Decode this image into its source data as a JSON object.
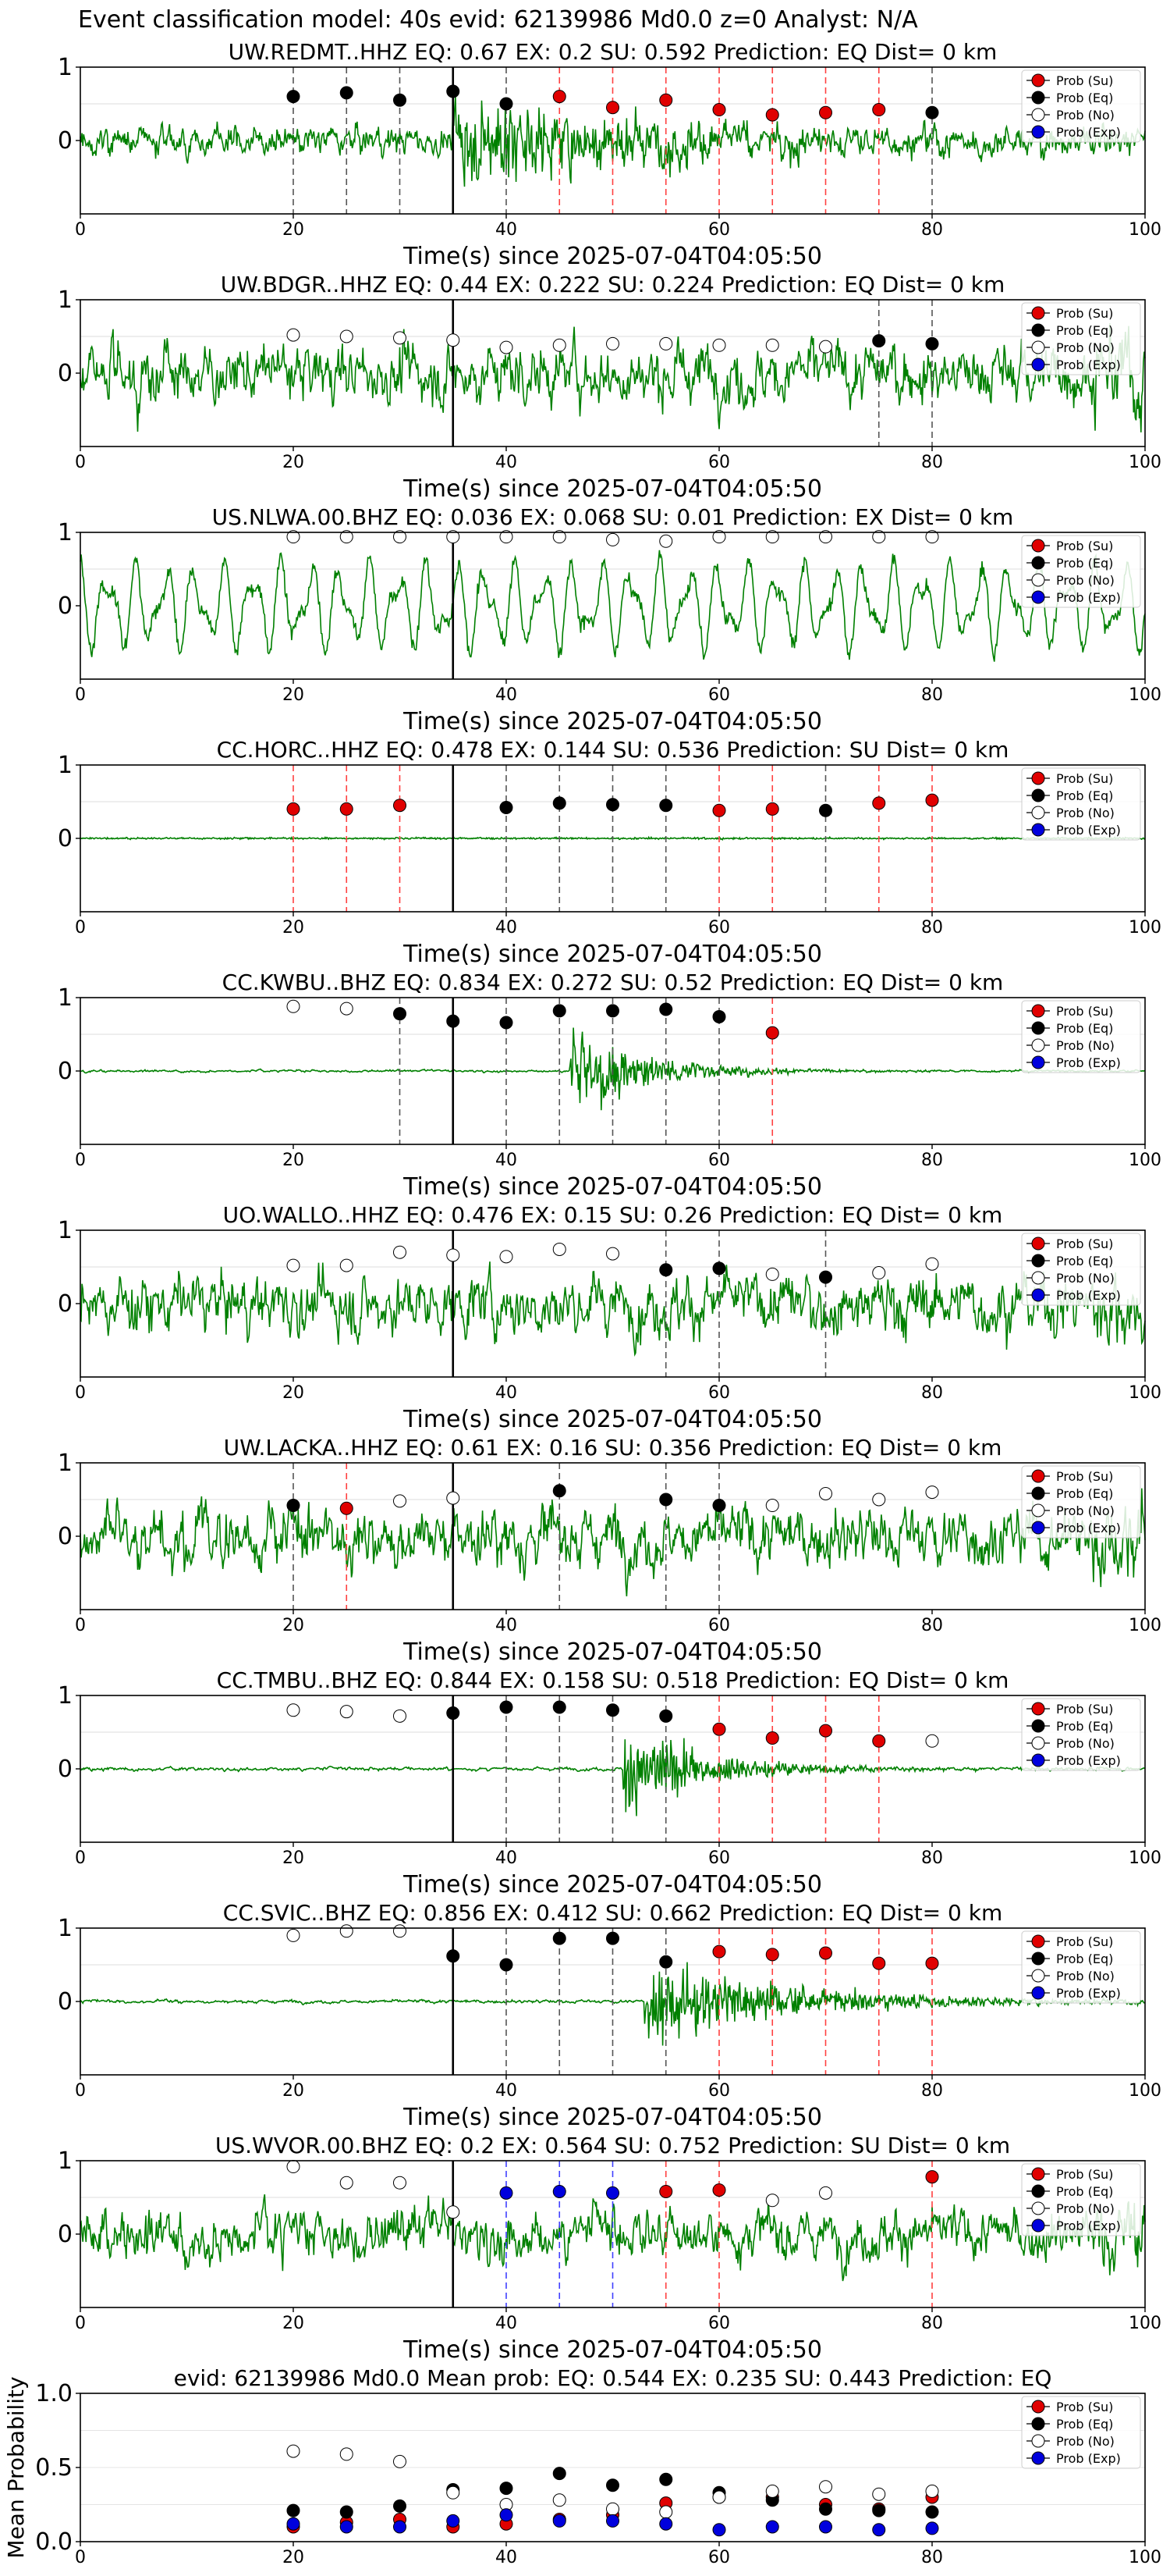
{
  "figure": {
    "suptitle": "Event classification model: 40s evid: 62139986 Md0.0 z=0 Analyst: N/A"
  },
  "legend_labels": [
    "Prob (Su)",
    "Prob (Eq)",
    "Prob (No)",
    "Prob (Exp)"
  ],
  "colors": {
    "su": "#e00000",
    "eq": "#000000",
    "no": "#ffffff",
    "exp": "#0000dd",
    "waveform": "#008000",
    "pick_line": "#000000"
  },
  "chart_data": [
    {
      "type": "line",
      "title": "UW.REDMT..HHZ   EQ: 0.67  EX: 0.2  SU: 0.592   Prediction: EQ    Dist= 0 km",
      "xlabel": "Time(s) since 2025-07-04T04:05:50",
      "xlim": [
        0,
        100
      ],
      "ylim": [
        -1,
        1
      ],
      "xticks": [
        0,
        20,
        40,
        60,
        80,
        100
      ],
      "yticks": [
        1,
        0
      ],
      "pick_time": 35,
      "waveform": {
        "amp": 0.28,
        "style": "event",
        "onset": 35,
        "peak": 0.95,
        "decay": 20
      },
      "windows": [
        20,
        25,
        30,
        35,
        40,
        45,
        50,
        55,
        60,
        65,
        70,
        75,
        80
      ],
      "classes": [
        "eq",
        "eq",
        "eq",
        "eq",
        "eq",
        "su",
        "su",
        "su",
        "su",
        "su",
        "su",
        "su",
        "eq"
      ],
      "values": [
        0.6,
        0.65,
        0.55,
        0.67,
        0.5,
        0.6,
        0.45,
        0.55,
        0.42,
        0.35,
        0.38,
        0.42,
        0.38
      ],
      "legend": [
        "Prob (Su)",
        "Prob (Eq)",
        "Prob (No)",
        "Prob (Exp)"
      ]
    },
    {
      "type": "line",
      "title": "UW.BDGR..HHZ   EQ: 0.44  EX: 0.222  SU: 0.224   Prediction: EQ    Dist= 0 km",
      "xlabel": "Time(s) since 2025-07-04T04:05:50",
      "xlim": [
        0,
        100
      ],
      "ylim": [
        -1,
        1
      ],
      "xticks": [
        0,
        20,
        40,
        60,
        80,
        100
      ],
      "yticks": [
        1,
        0
      ],
      "pick_time": 35,
      "waveform": {
        "amp": 0.55,
        "style": "noise"
      },
      "windows": [
        20,
        25,
        30,
        35,
        40,
        45,
        50,
        55,
        60,
        65,
        70,
        75,
        80
      ],
      "classes": [
        "no",
        "no",
        "no",
        "no",
        "no",
        "no",
        "no",
        "no",
        "no",
        "no",
        "no",
        "eq",
        "eq"
      ],
      "values": [
        0.52,
        0.5,
        0.48,
        0.45,
        0.35,
        0.38,
        0.4,
        0.4,
        0.38,
        0.38,
        0.36,
        0.44,
        0.4
      ],
      "legend": [
        "Prob (Su)",
        "Prob (Eq)",
        "Prob (No)",
        "Prob (Exp)"
      ]
    },
    {
      "type": "line",
      "title": "US.NLWA.00.BHZ   EQ: 0.036  EX: 0.068  SU: 0.01   Prediction: EX    Dist= 0 km",
      "xlabel": "Time(s) since 2025-07-04T04:05:50",
      "xlim": [
        0,
        100
      ],
      "ylim": [
        -1,
        1
      ],
      "xticks": [
        0,
        20,
        40,
        60,
        80,
        100
      ],
      "yticks": [
        1,
        0
      ],
      "pick_time": 35,
      "waveform": {
        "amp": 0.7,
        "style": "lowfreq"
      },
      "windows": [
        20,
        25,
        30,
        35,
        40,
        45,
        50,
        55,
        60,
        65,
        70,
        75,
        80
      ],
      "classes": [
        "no",
        "no",
        "no",
        "no",
        "no",
        "no",
        "no",
        "no",
        "no",
        "no",
        "no",
        "no",
        "no"
      ],
      "values": [
        0.94,
        0.94,
        0.94,
        0.94,
        0.94,
        0.94,
        0.9,
        0.88,
        0.94,
        0.94,
        0.94,
        0.94,
        0.94
      ],
      "legend": [
        "Prob (Su)",
        "Prob (Eq)",
        "Prob (No)",
        "Prob (Exp)"
      ]
    },
    {
      "type": "line",
      "title": "CC.HORC..HHZ   EQ: 0.478  EX: 0.144  SU: 0.536   Prediction: SU    Dist= 0 km",
      "xlabel": "Time(s) since 2025-07-04T04:05:50",
      "xlim": [
        0,
        100
      ],
      "ylim": [
        -1,
        1
      ],
      "xticks": [
        0,
        20,
        40,
        60,
        80,
        100
      ],
      "yticks": [
        1,
        0
      ],
      "pick_time": 35,
      "waveform": {
        "amp": 0.012,
        "style": "flat"
      },
      "windows": [
        20,
        25,
        30,
        40,
        45,
        50,
        55,
        60,
        65,
        70,
        75,
        80
      ],
      "classes": [
        "su",
        "su",
        "su",
        "eq",
        "eq",
        "eq",
        "eq",
        "su",
        "su",
        "eq",
        "su",
        "su"
      ],
      "values": [
        0.4,
        0.4,
        0.45,
        0.42,
        0.48,
        0.46,
        0.45,
        0.38,
        0.4,
        0.38,
        0.48,
        0.52
      ],
      "legend": [
        "Prob (Su)",
        "Prob (Eq)",
        "Prob (No)",
        "Prob (Exp)"
      ]
    },
    {
      "type": "line",
      "title": "CC.KWBU..BHZ   EQ: 0.834  EX: 0.272  SU: 0.52   Prediction: EQ    Dist= 0 km",
      "xlabel": "Time(s) since 2025-07-04T04:05:50",
      "xlim": [
        0,
        100
      ],
      "ylim": [
        -1,
        1
      ],
      "xticks": [
        0,
        20,
        40,
        60,
        80,
        100
      ],
      "yticks": [
        1,
        0
      ],
      "pick_time": 35,
      "waveform": {
        "amp": 0.02,
        "style": "burst",
        "onset": 46,
        "peak": 0.95,
        "decay": 7
      },
      "windows": [
        20,
        25,
        30,
        35,
        40,
        45,
        50,
        55,
        60,
        65
      ],
      "classes": [
        "no",
        "no",
        "eq",
        "eq",
        "eq",
        "eq",
        "eq",
        "eq",
        "eq",
        "su"
      ],
      "values": [
        0.88,
        0.85,
        0.78,
        0.68,
        0.66,
        0.82,
        0.82,
        0.84,
        0.74,
        0.52
      ],
      "legend": [
        "Prob (Su)",
        "Prob (Eq)",
        "Prob (No)",
        "Prob (Exp)"
      ]
    },
    {
      "type": "line",
      "title": "UO.WALLO..HHZ   EQ: 0.476  EX: 0.15  SU: 0.26   Prediction: EQ    Dist= 0 km",
      "xlabel": "Time(s) since 2025-07-04T04:05:50",
      "xlim": [
        0,
        100
      ],
      "ylim": [
        -1,
        1
      ],
      "xticks": [
        0,
        20,
        40,
        60,
        80,
        100
      ],
      "yticks": [
        1,
        0
      ],
      "pick_time": 35,
      "waveform": {
        "amp": 0.55,
        "style": "noise"
      },
      "windows": [
        20,
        25,
        30,
        35,
        40,
        45,
        50,
        55,
        60,
        65,
        70,
        75,
        80
      ],
      "classes": [
        "no",
        "no",
        "no",
        "no",
        "no",
        "no",
        "no",
        "eq",
        "eq",
        "no",
        "eq",
        "no",
        "no"
      ],
      "values": [
        0.52,
        0.52,
        0.7,
        0.66,
        0.64,
        0.74,
        0.68,
        0.46,
        0.48,
        0.4,
        0.36,
        0.42,
        0.54
      ],
      "legend": [
        "Prob (Su)",
        "Prob (Eq)",
        "Prob (No)",
        "Prob (Exp)"
      ]
    },
    {
      "type": "line",
      "title": "UW.LACKA..HHZ   EQ: 0.61  EX: 0.16  SU: 0.356   Prediction: EQ    Dist= 0 km",
      "xlabel": "Time(s) since 2025-07-04T04:05:50",
      "xlim": [
        0,
        100
      ],
      "ylim": [
        -1,
        1
      ],
      "xticks": [
        0,
        20,
        40,
        60,
        80,
        100
      ],
      "yticks": [
        1,
        0
      ],
      "pick_time": 35,
      "waveform": {
        "amp": 0.55,
        "style": "noise"
      },
      "windows": [
        20,
        25,
        30,
        35,
        45,
        55,
        60,
        65,
        70,
        75,
        80
      ],
      "classes": [
        "eq",
        "su",
        "no",
        "no",
        "eq",
        "eq",
        "eq",
        "no",
        "no",
        "no",
        "no"
      ],
      "values": [
        0.42,
        0.38,
        0.48,
        0.52,
        0.62,
        0.5,
        0.42,
        0.42,
        0.58,
        0.5,
        0.6
      ],
      "legend": [
        "Prob (Su)",
        "Prob (Eq)",
        "Prob (No)",
        "Prob (Exp)"
      ]
    },
    {
      "type": "line",
      "title": "CC.TMBU..BHZ   EQ: 0.844  EX: 0.158  SU: 0.518   Prediction: EQ    Dist= 0 km",
      "xlabel": "Time(s) since 2025-07-04T04:05:50",
      "xlim": [
        0,
        100
      ],
      "ylim": [
        -1,
        1
      ],
      "xticks": [
        0,
        20,
        40,
        60,
        80,
        100
      ],
      "yticks": [
        1,
        0
      ],
      "pick_time": 35,
      "waveform": {
        "amp": 0.03,
        "style": "burst",
        "onset": 51,
        "peak": 0.9,
        "decay": 8
      },
      "windows": [
        20,
        25,
        30,
        35,
        40,
        45,
        50,
        55,
        60,
        65,
        70,
        75,
        80
      ],
      "classes": [
        "no",
        "no",
        "no",
        "eq",
        "eq",
        "eq",
        "eq",
        "eq",
        "su",
        "su",
        "su",
        "su",
        "no"
      ],
      "values": [
        0.8,
        0.78,
        0.72,
        0.76,
        0.84,
        0.84,
        0.8,
        0.72,
        0.54,
        0.42,
        0.52,
        0.38,
        0.38
      ],
      "legend": [
        "Prob (Su)",
        "Prob (Eq)",
        "Prob (No)",
        "Prob (Exp)"
      ]
    },
    {
      "type": "line",
      "title": "CC.SVIC..BHZ   EQ: 0.856  EX: 0.412  SU: 0.662   Prediction: EQ    Dist= 0 km",
      "xlabel": "Time(s) since 2025-07-04T04:05:50",
      "xlim": [
        0,
        100
      ],
      "ylim": [
        -1,
        1
      ],
      "xticks": [
        0,
        20,
        40,
        60,
        80,
        100
      ],
      "yticks": [
        1,
        0
      ],
      "pick_time": 35,
      "waveform": {
        "amp": 0.03,
        "style": "burst",
        "onset": 53,
        "peak": 0.85,
        "decay": 14
      },
      "windows": [
        20,
        25,
        30,
        35,
        40,
        45,
        50,
        55,
        60,
        65,
        70,
        75,
        80
      ],
      "classes": [
        "no",
        "no",
        "no",
        "eq",
        "eq",
        "eq",
        "eq",
        "eq",
        "su",
        "su",
        "su",
        "su",
        "su"
      ],
      "values": [
        0.9,
        0.96,
        0.96,
        0.62,
        0.5,
        0.86,
        0.86,
        0.54,
        0.68,
        0.64,
        0.66,
        0.52,
        0.52
      ],
      "legend": [
        "Prob (Su)",
        "Prob (Eq)",
        "Prob (No)",
        "Prob (Exp)"
      ]
    },
    {
      "type": "line",
      "title": "US.WVOR.00.BHZ   EQ: 0.2  EX: 0.564  SU: 0.752   Prediction: SU    Dist= 0 km",
      "xlabel": "Time(s) since 2025-07-04T04:05:50",
      "xlim": [
        0,
        100
      ],
      "ylim": [
        -1,
        1
      ],
      "xticks": [
        0,
        20,
        40,
        60,
        80,
        100
      ],
      "yticks": [
        1,
        0
      ],
      "pick_time": 35,
      "waveform": {
        "amp": 0.45,
        "style": "noise"
      },
      "windows": [
        20,
        25,
        30,
        35,
        40,
        45,
        50,
        55,
        60,
        65,
        70,
        80
      ],
      "classes": [
        "no",
        "no",
        "no",
        "no",
        "exp",
        "exp",
        "exp",
        "su",
        "su",
        "no",
        "no",
        "su"
      ],
      "values": [
        0.92,
        0.7,
        0.7,
        0.3,
        0.56,
        0.58,
        0.56,
        0.58,
        0.6,
        0.46,
        0.56,
        0.78
      ],
      "legend": [
        "Prob (Su)",
        "Prob (Eq)",
        "Prob (No)",
        "Prob (Exp)"
      ]
    },
    {
      "type": "scatter",
      "title": "evid: 62139986  Md0.0   Mean prob:   EQ: 0.544  EX: 0.235  SU: 0.443   Prediction: EQ",
      "ylabel": "Mean Probability",
      "xlim": [
        0,
        100
      ],
      "ylim": [
        0,
        1
      ],
      "xticks": [
        0,
        20,
        40,
        60,
        80,
        100
      ],
      "yticks": [
        0.0,
        0.5,
        1.0
      ],
      "ytick_labels": [
        "0.0",
        "0.5",
        "1.0"
      ],
      "x": [
        20,
        25,
        30,
        35,
        40,
        45,
        50,
        55,
        60,
        65,
        70,
        75,
        80
      ],
      "series": [
        {
          "name": "Prob (Su)",
          "cls": "su",
          "values": [
            0.1,
            0.13,
            0.15,
            0.1,
            0.12,
            0.15,
            0.18,
            0.26,
            0.3,
            0.3,
            0.25,
            0.22,
            0.3
          ]
        },
        {
          "name": "Prob (Eq)",
          "cls": "eq",
          "values": [
            0.21,
            0.2,
            0.24,
            0.35,
            0.36,
            0.46,
            0.38,
            0.42,
            0.33,
            0.28,
            0.22,
            0.21,
            0.2
          ]
        },
        {
          "name": "Prob (No)",
          "cls": "no",
          "values": [
            0.61,
            0.59,
            0.54,
            0.33,
            0.25,
            0.28,
            0.22,
            0.2,
            0.3,
            0.34,
            0.37,
            0.32,
            0.34
          ]
        },
        {
          "name": "Prob (Exp)",
          "cls": "exp",
          "values": [
            0.12,
            0.1,
            0.1,
            0.14,
            0.18,
            0.14,
            0.14,
            0.12,
            0.08,
            0.1,
            0.1,
            0.08,
            0.09
          ]
        }
      ],
      "legend": [
        "Prob (Su)",
        "Prob (Eq)",
        "Prob (No)",
        "Prob (Exp)"
      ]
    }
  ]
}
